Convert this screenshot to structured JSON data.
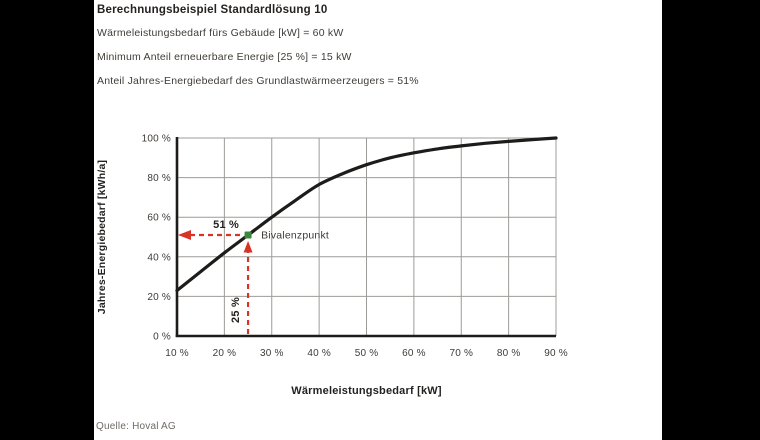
{
  "header": {
    "title": "Berechnungsbeispiel Standardlösung 10",
    "lines": [
      "Wärmeleistungsbedarf fürs Gebäude [kW] = 60 kW",
      "Minimum Anteil erneuerbare Energie [25 %] = 15 kW",
      "Anteil Jahres-Energiebedarf des Grundlastwärmeerzeugers = 51%"
    ]
  },
  "source": "Quelle: Hoval AG",
  "chart_data": {
    "type": "line",
    "title": "",
    "xlabel": "Wärmeleistungsbedarf [kW]",
    "ylabel": "Jahres-Energiebedarf [kWh/a]",
    "xlim": [
      10,
      90
    ],
    "ylim": [
      0,
      100
    ],
    "grid": true,
    "legend": false,
    "x_tick_values": [
      10,
      20,
      30,
      40,
      50,
      60,
      70,
      80,
      90
    ],
    "x_tick_labels": [
      "10 %",
      "20 %",
      "30 %",
      "40 %",
      "50 %",
      "60 %",
      "70 %",
      "80 %",
      "90 %"
    ],
    "y_tick_values": [
      0,
      20,
      40,
      60,
      80,
      100
    ],
    "y_tick_labels": [
      "0 %",
      "20 %",
      "40 %",
      "60 %",
      "80 %",
      "100 %"
    ],
    "series": [
      {
        "name": "Anteil Jahres-Energiebedarf des Grundlastwärmeerzeugers",
        "x": [
          10,
          15,
          20,
          25,
          30,
          35,
          40,
          45,
          50,
          55,
          60,
          65,
          70,
          75,
          80,
          85,
          90
        ],
        "y": [
          23,
          32.5,
          42,
          51,
          60,
          68.5,
          76.5,
          82,
          86.5,
          90,
          92.5,
          94.5,
          96,
          97.3,
          98.3,
          99.2,
          100
        ]
      }
    ],
    "annotations": {
      "bivalenzpunkt": {
        "label": "Bivalenzpunkt",
        "x": 25,
        "y": 51
      },
      "horizontal_arrow": {
        "label": "51 %",
        "y": 51,
        "points_to": "y-axis"
      },
      "vertical_arrow": {
        "label": "25 %",
        "x": 25,
        "points_to": "bivalenzpunkt"
      }
    },
    "colors": {
      "curve": "#1d1c1a",
      "grid": "#9e9c98",
      "axis": "#1d1c1a",
      "arrow_red": "#d93226",
      "marker_green": "#3b873c",
      "tick_text": "#3f3b36",
      "label_text": "#242220"
    }
  }
}
